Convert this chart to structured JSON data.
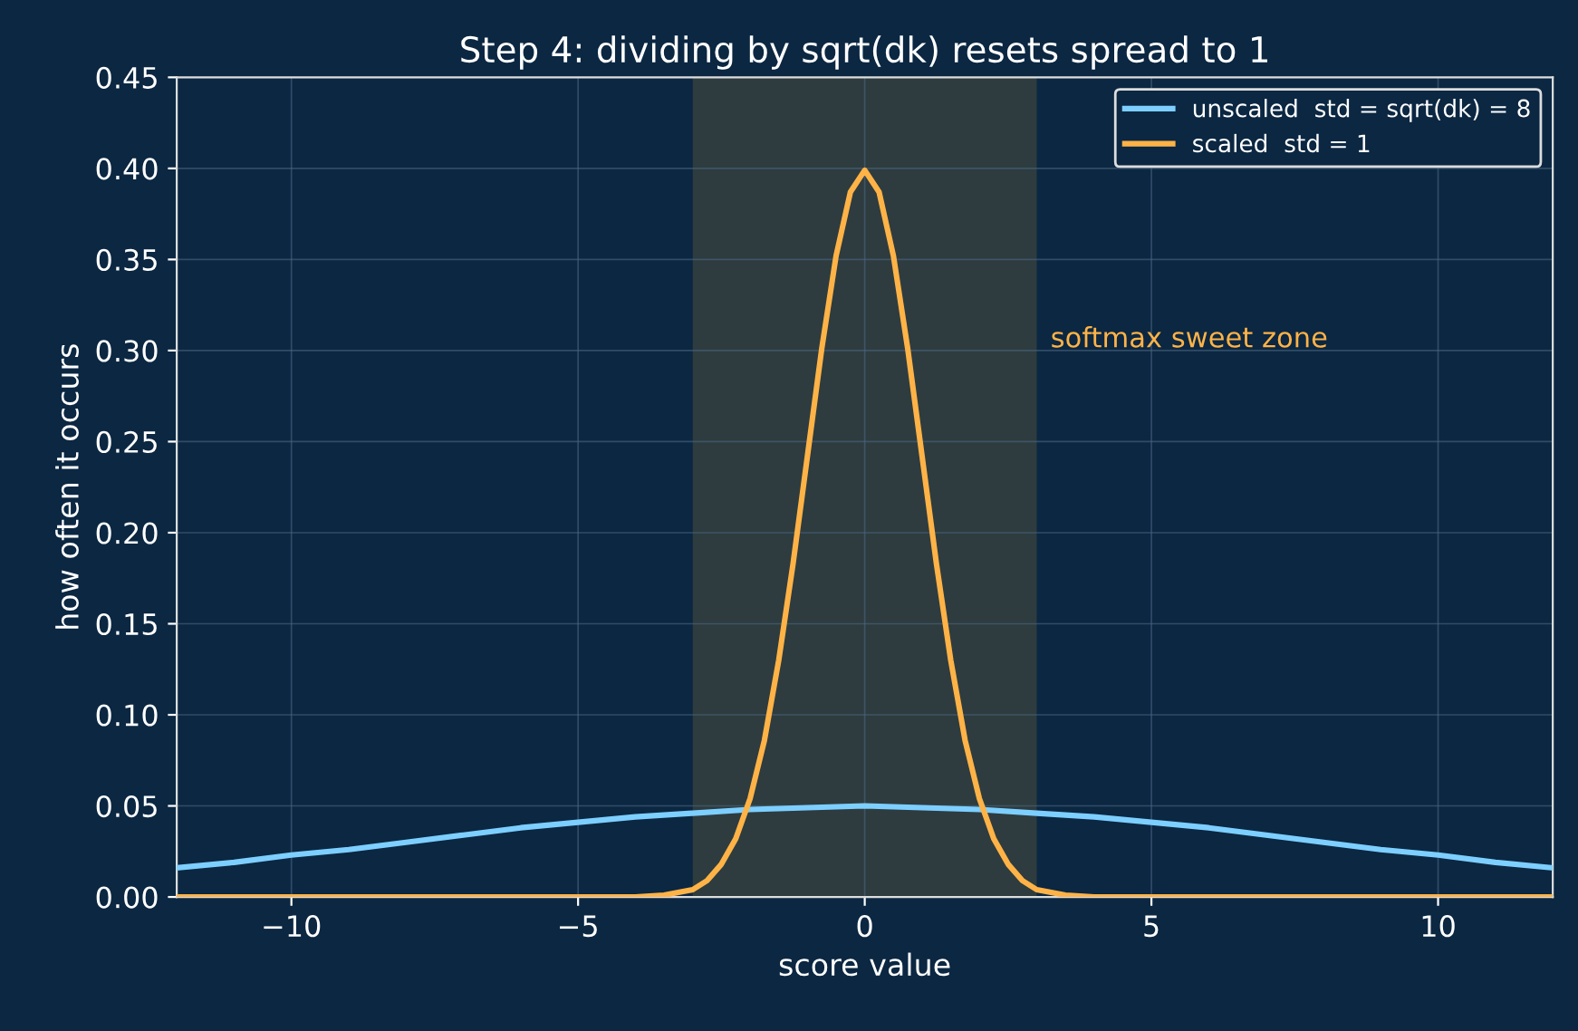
{
  "chart_data": {
    "type": "line",
    "title": "Step 4: dividing by sqrt(dk) resets spread to 1",
    "xlabel": "score value",
    "ylabel": "how often it occurs",
    "series": [
      {
        "name": "unscaled  std = sqrt(dk) = 8",
        "color": "#7dcfff",
        "x": [
          -12,
          -11,
          -10,
          -9,
          -8,
          -7,
          -6,
          -5,
          -4,
          -3,
          -2,
          -1,
          0,
          1,
          2,
          3,
          4,
          5,
          6,
          7,
          8,
          9,
          10,
          11,
          12
        ],
        "values": [
          0.016,
          0.019,
          0.023,
          0.026,
          0.03,
          0.034,
          0.038,
          0.041,
          0.044,
          0.046,
          0.048,
          0.049,
          0.05,
          0.049,
          0.048,
          0.046,
          0.044,
          0.041,
          0.038,
          0.034,
          0.03,
          0.026,
          0.023,
          0.019,
          0.016
        ]
      },
      {
        "name": "scaled  std = 1",
        "color": "#ffb347",
        "x": [
          -12,
          -4,
          -3.5,
          -3,
          -2.75,
          -2.5,
          -2.25,
          -2,
          -1.75,
          -1.5,
          -1.25,
          -1,
          -0.75,
          -0.5,
          -0.25,
          0,
          0.25,
          0.5,
          0.75,
          1,
          1.25,
          1.5,
          1.75,
          2,
          2.25,
          2.5,
          2.75,
          3,
          3.5,
          4,
          12
        ],
        "values": [
          0,
          0,
          0.001,
          0.004,
          0.009,
          0.018,
          0.032,
          0.054,
          0.086,
          0.13,
          0.183,
          0.242,
          0.301,
          0.352,
          0.387,
          0.399,
          0.387,
          0.352,
          0.301,
          0.242,
          0.183,
          0.13,
          0.086,
          0.054,
          0.032,
          0.018,
          0.009,
          0.004,
          0.001,
          0,
          0
        ]
      }
    ],
    "bands": [
      {
        "axis": "x",
        "from": -3,
        "to": 3,
        "color": "#2e3c3f"
      }
    ],
    "annotations": [
      "softmax sweet zone"
    ],
    "xlim": [
      -12,
      12
    ],
    "xticks": [
      {
        "value": -10,
        "label": "−10"
      },
      {
        "value": -5,
        "label": "−5"
      },
      0,
      5,
      10
    ],
    "ylim": [
      0,
      0.45
    ],
    "yticks": [
      {
        "value": 0,
        "label": "0.00"
      },
      {
        "value": 0.05,
        "label": "0.05"
      },
      {
        "value": 0.1,
        "label": "0.10"
      },
      {
        "value": 0.15,
        "label": "0.15"
      },
      {
        "value": 0.2,
        "label": "0.20"
      },
      {
        "value": 0.25,
        "label": "0.25"
      },
      {
        "value": 0.3,
        "label": "0.30"
      },
      {
        "value": 0.35,
        "label": "0.35"
      },
      {
        "value": 0.4,
        "label": "0.40"
      },
      {
        "value": 0.45,
        "label": "0.45"
      }
    ],
    "grid": true,
    "legend": "top right",
    "marker": "none",
    "line_style": "solid"
  }
}
